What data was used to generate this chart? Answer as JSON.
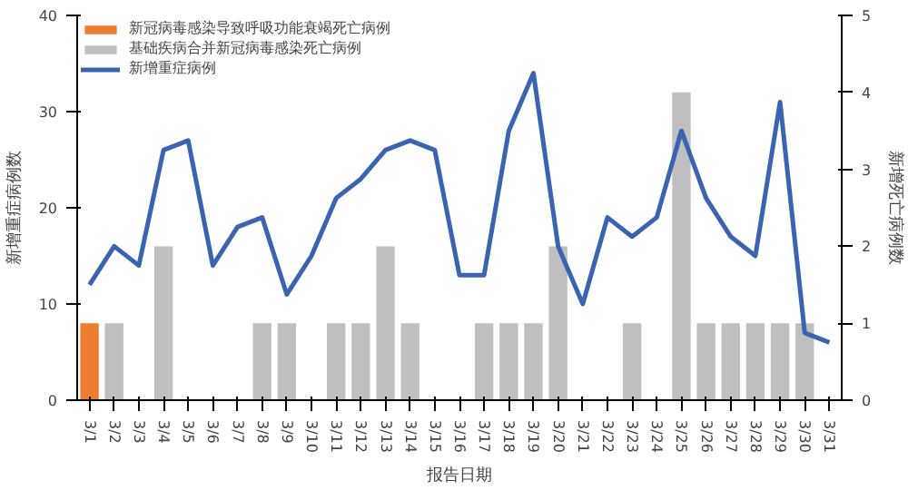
{
  "chart_data": {
    "type": "bar",
    "xlabel": "报告日期",
    "ylabel": "新增重症病例数",
    "y2label": "新增死亡病例数",
    "categories": [
      "3/1",
      "3/2",
      "3/3",
      "3/4",
      "3/5",
      "3/6",
      "3/7",
      "3/8",
      "3/9",
      "3/10",
      "3/11",
      "3/12",
      "3/13",
      "3/14",
      "3/15",
      "3/16",
      "3/17",
      "3/18",
      "3/19",
      "3/20",
      "3/21",
      "3/22",
      "3/23",
      "3/24",
      "3/25",
      "3/26",
      "3/27",
      "3/28",
      "3/29",
      "3/30",
      "3/31"
    ],
    "series": [
      {
        "name": "新冠病毒感染导致呼吸功能衰竭死亡病例",
        "axis": "y2",
        "color": "#ed7d31",
        "values": [
          1,
          null,
          null,
          null,
          null,
          null,
          null,
          null,
          null,
          null,
          null,
          null,
          null,
          null,
          null,
          null,
          null,
          null,
          null,
          null,
          null,
          null,
          null,
          null,
          null,
          null,
          null,
          null,
          null,
          null,
          null
        ]
      },
      {
        "name": "基础疾病合并新冠病毒感染死亡病例",
        "axis": "y2",
        "color": "#bfbfbf",
        "values": [
          null,
          1,
          0,
          2,
          0,
          0,
          0,
          1,
          1,
          0,
          1,
          1,
          2,
          1,
          0,
          0,
          1,
          1,
          1,
          2,
          0,
          0,
          1,
          0,
          4,
          1,
          1,
          1,
          1,
          1,
          0
        ]
      },
      {
        "name": "新增重症病例",
        "type": "line",
        "color": "#3a64b0",
        "values": [
          12,
          16,
          14,
          26,
          27,
          14,
          18,
          19,
          11,
          15,
          21,
          23,
          26,
          27,
          26,
          13,
          13,
          28,
          34,
          16,
          10,
          19,
          17,
          19,
          28,
          21,
          17,
          15,
          31,
          7,
          6
        ]
      }
    ],
    "ylim": [
      0,
      40
    ],
    "yticks": [
      0,
      10,
      20,
      30,
      40
    ],
    "y2lim": [
      0,
      5
    ],
    "y2ticks": [
      0,
      1,
      2,
      3,
      4,
      5
    ],
    "grid": false,
    "legend": "top left"
  }
}
